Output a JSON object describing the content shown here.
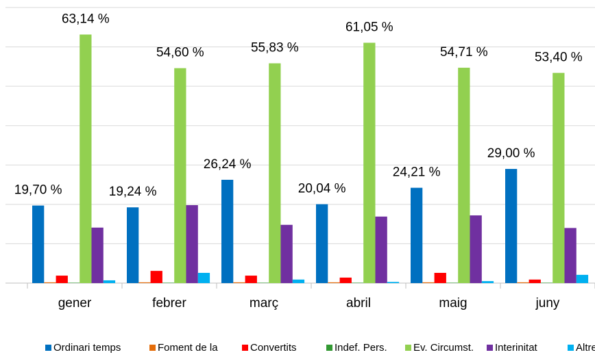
{
  "chart_data": {
    "type": "bar",
    "categories": [
      "gener",
      "febrer",
      "març",
      "abril",
      "maig",
      "juny"
    ],
    "ylim": [
      0,
      70
    ],
    "yticks": [
      0,
      10,
      20,
      30,
      40,
      50,
      60,
      70
    ],
    "grid": true,
    "legend": "bottom",
    "series": [
      {
        "name": "Ordinari temps",
        "color": "#0070c0",
        "values": [
          19.7,
          19.24,
          26.24,
          20.04,
          24.21,
          29.0
        ],
        "value_labels": [
          "19,70 %",
          "19,24 %",
          "26,24 %",
          "20,04 %",
          "24,21 %",
          "29,00 %"
        ]
      },
      {
        "name": "Foment de la",
        "color": "#e46c0a",
        "values": [
          0.2,
          0.2,
          0.2,
          0.2,
          0.2,
          0.2
        ]
      },
      {
        "name": "Convertits",
        "color": "#ff0000",
        "values": [
          1.9,
          3.1,
          1.9,
          1.4,
          2.6,
          0.9
        ]
      },
      {
        "name": "Indef. Pers.",
        "color": "#339933",
        "values": [
          0.1,
          0.1,
          0.1,
          0.1,
          0.1,
          0.1
        ]
      },
      {
        "name": "Ev. Circumst.",
        "color": "#92d050",
        "values": [
          63.14,
          54.6,
          55.83,
          61.05,
          54.71,
          53.4
        ],
        "value_labels": [
          "63,14 %",
          "54,60 %",
          "55,83 %",
          "61,05 %",
          "54,71 %",
          "53,40 %"
        ]
      },
      {
        "name": "Interinitat",
        "color": "#7030a0",
        "values": [
          14.1,
          19.8,
          14.8,
          16.9,
          17.2,
          14.0
        ]
      },
      {
        "name": "Altres",
        "color": "#00b0f0",
        "values": [
          0.7,
          2.6,
          0.9,
          0.3,
          0.5,
          2.1
        ]
      }
    ]
  }
}
